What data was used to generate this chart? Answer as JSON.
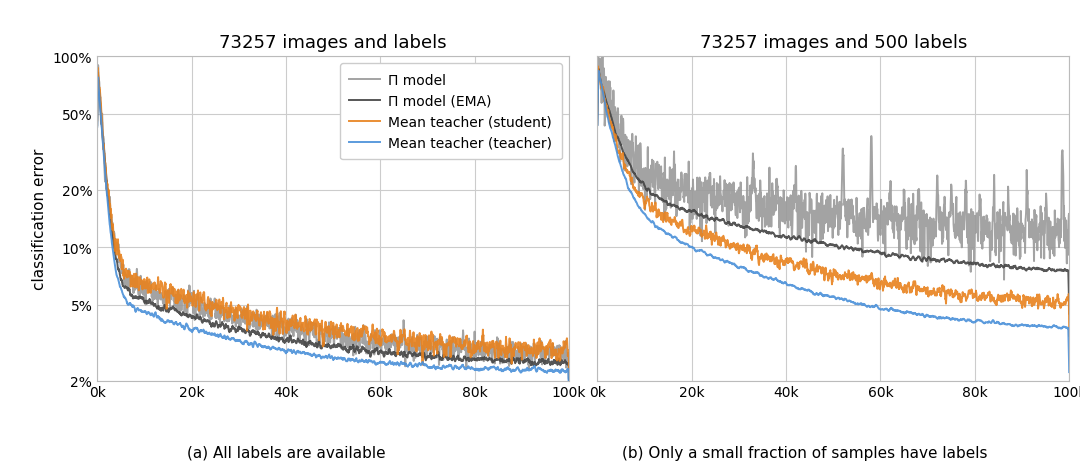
{
  "title_left": "73257 images and labels",
  "title_right": "73257 images and 500 labels",
  "caption_left": "(a) All labels are available",
  "caption_right": "(b) Only a small fraction of samples have labels",
  "ylabel": "classification error",
  "yticks": [
    2,
    5,
    10,
    20,
    50,
    100
  ],
  "ytick_labels": [
    "2%",
    "5%",
    "10%",
    "20%",
    "50%",
    "100%"
  ],
  "xticks": [
    0,
    20000,
    40000,
    60000,
    80000,
    100000
  ],
  "xtick_labels": [
    "0k",
    "20k",
    "40k",
    "60k",
    "80k",
    "100k"
  ],
  "xlim": [
    0,
    100000
  ],
  "ylim_log_min": 2,
  "ylim_log_max": 100,
  "n_steps": 2000,
  "colors": {
    "pi_model": "#999999",
    "pi_model_ema": "#444444",
    "mean_teacher_student": "#E8821E",
    "mean_teacher_teacher": "#4A90D9"
  },
  "legend_labels": [
    "Π model",
    "Π model (EMA)",
    "Mean teacher (student)",
    "Mean teacher (teacher)"
  ],
  "background_color": "#ffffff",
  "grid_color": "#cccccc",
  "title_fontsize": 13,
  "label_fontsize": 11,
  "tick_fontsize": 10,
  "caption_fontsize": 11,
  "legend_fontsize": 10
}
